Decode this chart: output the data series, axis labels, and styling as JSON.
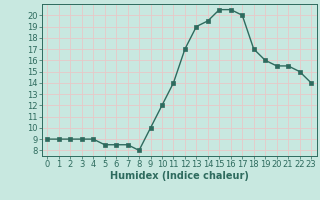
{
  "x": [
    0,
    1,
    2,
    3,
    4,
    5,
    6,
    7,
    8,
    9,
    10,
    11,
    12,
    13,
    14,
    15,
    16,
    17,
    18,
    19,
    20,
    21,
    22,
    23
  ],
  "y": [
    9,
    9,
    9,
    9,
    9,
    8.5,
    8.5,
    8.5,
    8,
    10,
    12,
    14,
    17,
    19,
    19.5,
    20.5,
    20.5,
    20,
    17,
    16,
    15.5,
    15.5,
    15,
    14
  ],
  "line_color": "#2e6b5e",
  "marker_color": "#2e6b5e",
  "bg_color": "#c8e8e0",
  "grid_color": "#e8c8c8",
  "xlabel": "Humidex (Indice chaleur)",
  "xlim": [
    -0.5,
    23.5
  ],
  "ylim": [
    7.5,
    21.0
  ],
  "yticks": [
    8,
    9,
    10,
    11,
    12,
    13,
    14,
    15,
    16,
    17,
    18,
    19,
    20
  ],
  "xticks": [
    0,
    1,
    2,
    3,
    4,
    5,
    6,
    7,
    8,
    9,
    10,
    11,
    12,
    13,
    14,
    15,
    16,
    17,
    18,
    19,
    20,
    21,
    22,
    23
  ],
  "xlabel_fontsize": 7,
  "tick_fontsize": 6,
  "marker_size": 2.5,
  "line_width": 1.0
}
